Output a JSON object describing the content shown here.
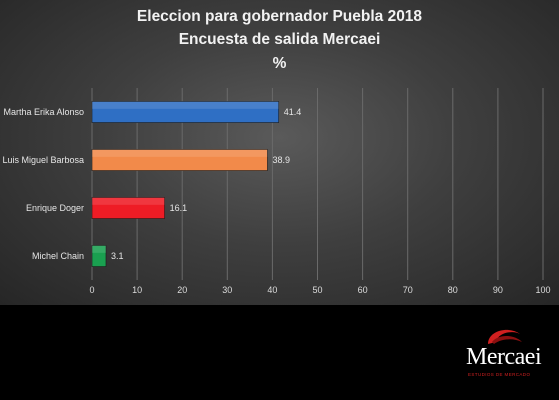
{
  "colors": {
    "background": "#3f3f3f",
    "bottom_band": "#000000",
    "logo_red": "#d02020"
  },
  "chart_data": {
    "type": "bar",
    "orientation": "horizontal",
    "title": "Eleccion para gobernador Puebla 2018",
    "subtitle": "Encuesta de salida Mercaei",
    "unit": "%",
    "categories": [
      "Martha Erika Alonso",
      "Luis Miguel Barbosa",
      "Enrique Doger",
      "Michel Chain"
    ],
    "values": [
      41.4,
      38.9,
      16.1,
      3.1
    ],
    "value_labels": [
      "41.4",
      "38.9",
      "16.1",
      "3.1"
    ],
    "bar_colors": [
      "#2f6fc4",
      "#f28a4a",
      "#ee1c25",
      "#1aa050"
    ],
    "xlim": [
      0,
      100
    ],
    "x_ticks": [
      0,
      10,
      20,
      30,
      40,
      50,
      60,
      70,
      80,
      90,
      100
    ],
    "grid": true,
    "legend": "none"
  },
  "logo": {
    "text": "Mercaei",
    "tagline": "ESTUDIOS DE MERCADO"
  }
}
